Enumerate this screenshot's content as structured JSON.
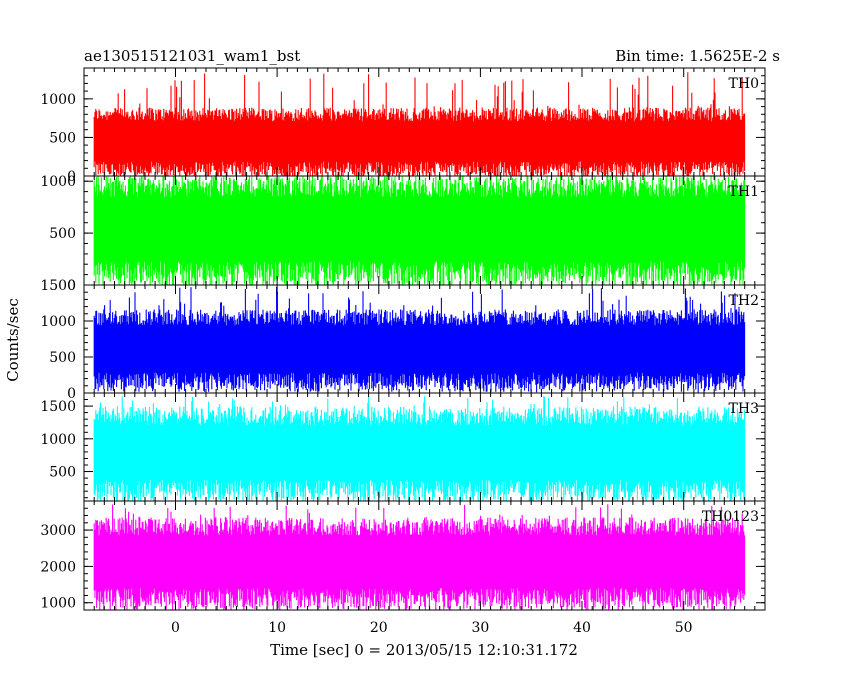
{
  "header": {
    "left_title": "ae130515121031_wam1_bst",
    "right_title": "Bin time: 1.5625E-2 s"
  },
  "chart_data": {
    "type": "line",
    "xlabel": "Time [sec] 0 = 2013/05/15 12:10:31.172",
    "ylabel": "Counts/sec",
    "xlim": [
      -9,
      58
    ],
    "x_ticks": [
      0,
      10,
      20,
      30,
      40,
      50
    ],
    "x_tick_labels": [
      "0",
      "10",
      "20",
      "30",
      "40",
      "50"
    ],
    "data_range_x": [
      -8,
      56
    ],
    "bin_time": 0.015625,
    "grid": false,
    "panels": [
      {
        "name": "TH0",
        "color": "#ff0000",
        "ylim": [
          0,
          1400
        ],
        "y_ticks": [
          0,
          500,
          1000
        ],
        "y_tick_labels": [
          "0",
          "500",
          "1000"
        ],
        "typical_low": 80,
        "typical_high": 800,
        "spike_max": 1350,
        "dip_min": 0
      },
      {
        "name": "TH1",
        "color": "#00ff00",
        "ylim": [
          0,
          1050
        ],
        "y_ticks": [
          0,
          500,
          1000
        ],
        "y_tick_labels": [
          "0",
          "500",
          "1000"
        ],
        "typical_low": 100,
        "typical_high": 950,
        "spike_max": 1050,
        "dip_min": 0
      },
      {
        "name": "TH2",
        "color": "#0000ff",
        "ylim": [
          0,
          1500
        ],
        "y_ticks": [
          0,
          500,
          1000,
          1500
        ],
        "y_tick_labels": [
          "0",
          "500",
          "1000",
          "1500"
        ],
        "typical_low": 150,
        "typical_high": 1050,
        "spike_max": 1480,
        "dip_min": 0
      },
      {
        "name": "TH3",
        "color": "#00ffff",
        "ylim": [
          50,
          1700
        ],
        "y_ticks": [
          500,
          1000,
          1500
        ],
        "y_tick_labels": [
          "500",
          "1000",
          "1500"
        ],
        "typical_low": 200,
        "typical_high": 1350,
        "spike_max": 1680,
        "dip_min": 60
      },
      {
        "name": "TH0123",
        "color": "#ff00ff",
        "ylim": [
          800,
          3800
        ],
        "y_ticks": [
          1000,
          2000,
          3000
        ],
        "y_tick_labels": [
          "1000",
          "2000",
          "3000"
        ],
        "typical_low": 1100,
        "typical_high": 3100,
        "spike_max": 3750,
        "dip_min": 850
      }
    ]
  }
}
